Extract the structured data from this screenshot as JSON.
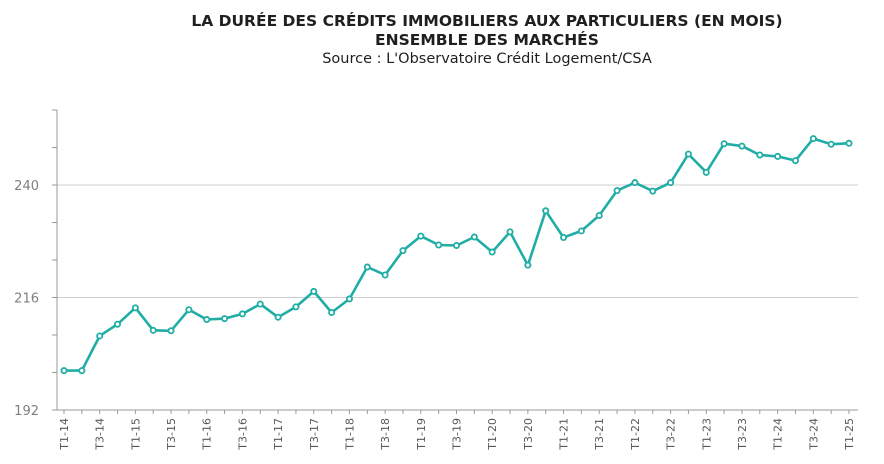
{
  "chart_data": {
    "type": "line",
    "title_lines": [
      "LA DURÉE DES CRÉDITS IMMOBILIERS AUX PARTICULIERS (EN MOIS)",
      "ENSEMBLE DES MARCHÉS"
    ],
    "subtitle": "Source : L'Observatoire Crédit Logement/CSA",
    "ylim": [
      192,
      256
    ],
    "yticks": [
      192,
      216,
      240
    ],
    "grid": true,
    "x_tick_labels": [
      "T1-14",
      "T3-14",
      "T1-15",
      "T3-15",
      "T1-16",
      "T3-16",
      "T1-17",
      "T3-17",
      "T1-18",
      "T3-18",
      "T1-19",
      "T3-19",
      "T1-20",
      "T3-20",
      "T1-21",
      "T3-21",
      "T1-22",
      "T3-22",
      "T1-23",
      "T3-23",
      "T1-24",
      "T3-24",
      "T1-25"
    ],
    "x": [
      "T1-14",
      "T2-14",
      "T3-14",
      "T4-14",
      "T1-15",
      "T2-15",
      "T3-15",
      "T4-15",
      "T1-16",
      "T2-16",
      "T3-16",
      "T4-16",
      "T1-17",
      "T2-17",
      "T3-17",
      "T4-17",
      "T1-18",
      "T2-18",
      "T3-18",
      "T4-18",
      "T1-19",
      "T2-19",
      "T3-19",
      "T4-19",
      "T1-20",
      "T2-20",
      "T3-20",
      "T4-20",
      "T1-21",
      "T2-21",
      "T3-21",
      "T4-21",
      "T1-22",
      "T2-22",
      "T3-22",
      "T4-22",
      "T1-23",
      "T2-23",
      "T3-23",
      "T4-23",
      "T1-24",
      "T2-24",
      "T3-24",
      "T4-24",
      "T1-25"
    ],
    "series": [
      {
        "color": "#20ada6",
        "values": [
          200.4,
          200.4,
          207.8,
          210.3,
          213.8,
          209.0,
          208.9,
          213.4,
          211.3,
          211.5,
          212.5,
          214.6,
          211.8,
          214.0,
          217.3,
          212.8,
          215.7,
          222.5,
          220.8,
          226.0,
          229.1,
          227.2,
          227.1,
          228.9,
          225.7,
          230.0,
          222.9,
          234.5,
          228.8,
          230.2,
          233.5,
          238.8,
          240.5,
          238.7,
          240.5,
          246.6,
          242.7,
          248.8,
          248.3,
          246.4,
          246.1,
          245.2,
          249.9,
          248.7,
          248.9
        ]
      }
    ]
  }
}
